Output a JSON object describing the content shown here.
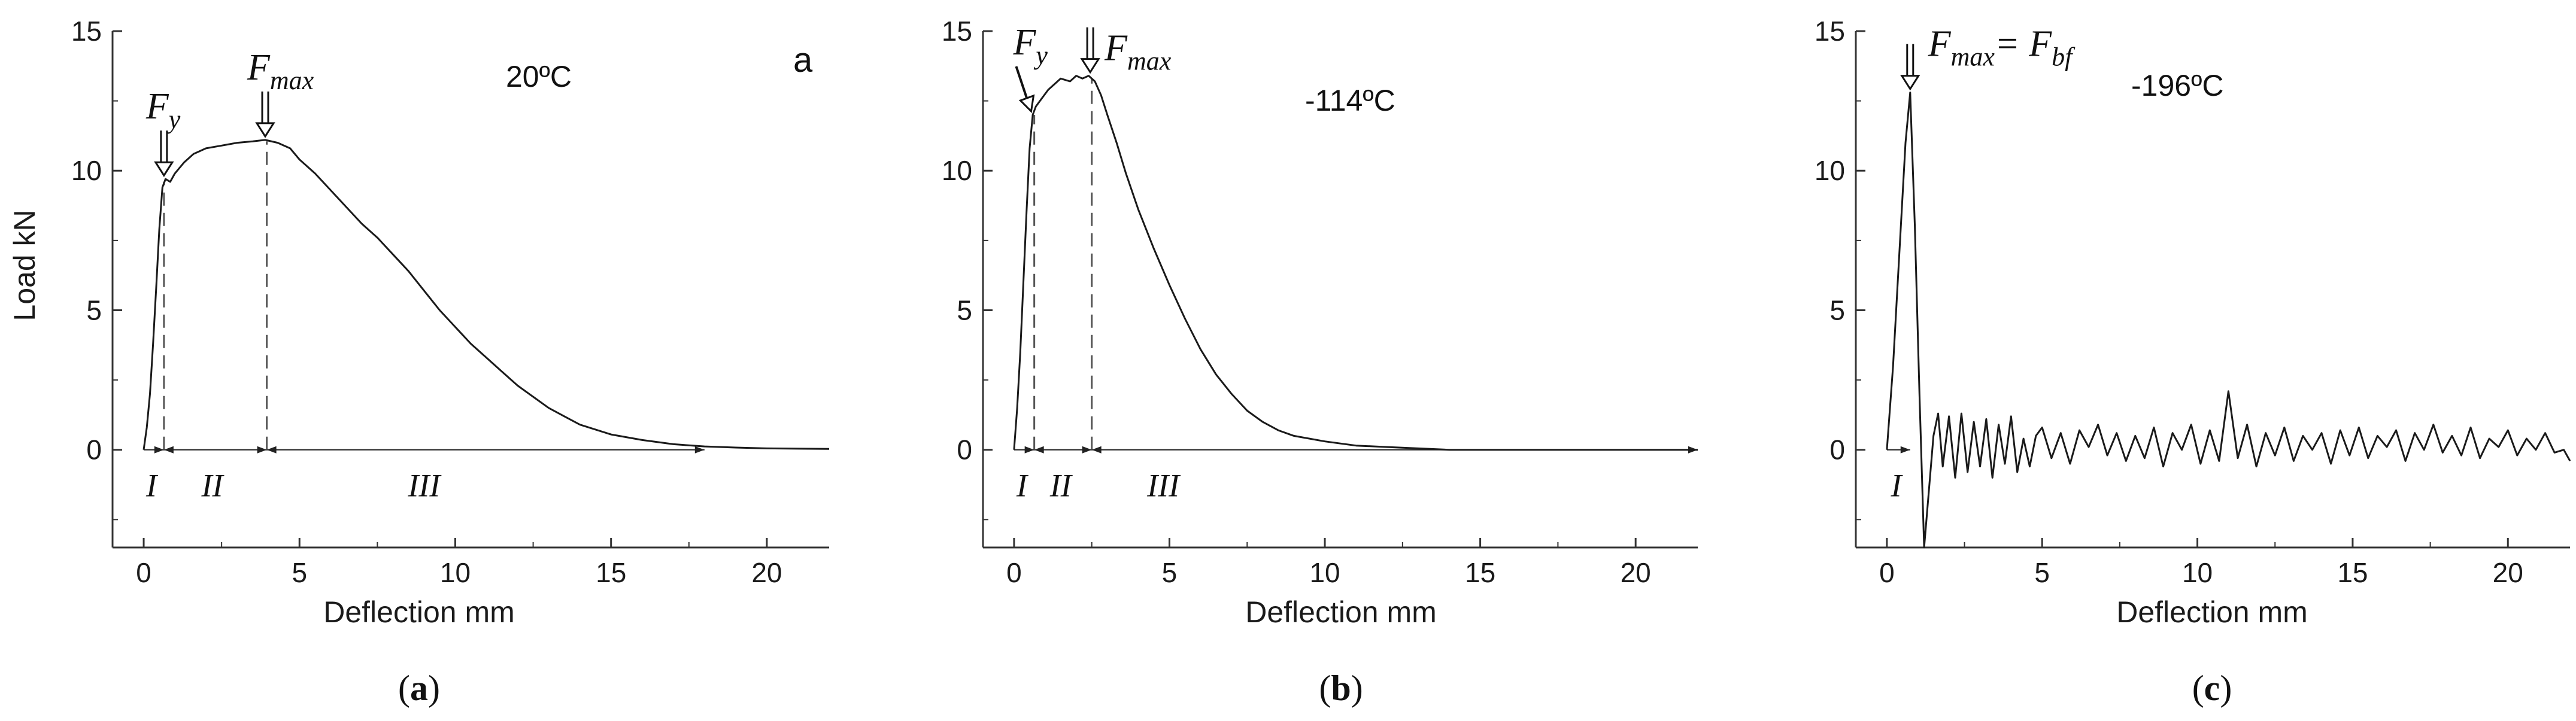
{
  "chart_data": [
    {
      "type": "line",
      "panel": "a",
      "caption_open": "(",
      "caption_letter": "a",
      "caption_close": ")",
      "corner_label": "a",
      "temperature": "20ºC",
      "xlabel": "Deflection  mm",
      "ylabel": "Load  kN",
      "xlim": [
        -1,
        22
      ],
      "ylim": [
        -3.5,
        15
      ],
      "xticks": [
        0,
        5,
        10,
        15,
        20
      ],
      "yticks": [
        0,
        5,
        10,
        15
      ],
      "baseline_end": 18.0,
      "annotations": [
        {
          "base": "F",
          "sub": "y",
          "x": 0.65,
          "y": 9.7,
          "arrow": "down"
        },
        {
          "base": "F",
          "sub": "max",
          "x": 3.9,
          "y": 11.1,
          "arrow": "down"
        }
      ],
      "dashed_markers": [
        0.65,
        3.95
      ],
      "stages": [
        {
          "label": "I",
          "x": 0.25
        },
        {
          "label": "II",
          "x": 2.2
        },
        {
          "label": "III",
          "x": 9.0
        }
      ],
      "series": [
        {
          "x": [
            0.0,
            0.1,
            0.2,
            0.3,
            0.4,
            0.5,
            0.6,
            0.7,
            0.85,
            1.0,
            1.3,
            1.6,
            2.0,
            2.5,
            3.0,
            3.5,
            3.9,
            4.3,
            4.7,
            5.0,
            5.5,
            6.0,
            6.5,
            7.0,
            7.5,
            8.0,
            8.5,
            9.0,
            9.5,
            10.0,
            10.5,
            11.0,
            11.5,
            12.0,
            12.5,
            13.0,
            13.5,
            14.0,
            15.0,
            16.0,
            17.0,
            18.0,
            19.0,
            20.0,
            21.0,
            22.0
          ],
          "y": [
            0.0,
            0.8,
            2.0,
            3.8,
            5.8,
            7.9,
            9.4,
            9.7,
            9.6,
            9.9,
            10.3,
            10.6,
            10.8,
            10.9,
            11.0,
            11.05,
            11.1,
            11.0,
            10.8,
            10.4,
            9.9,
            9.3,
            8.7,
            8.1,
            7.6,
            7.0,
            6.4,
            5.7,
            5.0,
            4.4,
            3.8,
            3.3,
            2.8,
            2.3,
            1.9,
            1.5,
            1.2,
            0.9,
            0.55,
            0.35,
            0.2,
            0.12,
            0.08,
            0.05,
            0.04,
            0.03
          ]
        }
      ]
    },
    {
      "type": "line",
      "panel": "b",
      "caption_open": "(",
      "caption_letter": "b",
      "caption_close": ")",
      "temperature": "-114ºC",
      "xlabel": "Deflection  mm",
      "ylabel": "",
      "xlim": [
        -1,
        22
      ],
      "ylim": [
        -3.5,
        15
      ],
      "xticks": [
        0,
        5,
        10,
        15,
        20
      ],
      "yticks": [
        0,
        5,
        10,
        15
      ],
      "baseline_end": 22.0,
      "annotations": [
        {
          "base": "F",
          "sub": "y",
          "x": 0.55,
          "y": 12.0,
          "arrow": "down-right"
        },
        {
          "base": "F",
          "sub": "max",
          "x": 2.45,
          "y": 13.4,
          "arrow": "down"
        }
      ],
      "dashed_markers": [
        0.65,
        2.5
      ],
      "stages": [
        {
          "label": "I",
          "x": 0.25
        },
        {
          "label": "II",
          "x": 1.5
        },
        {
          "label": "III",
          "x": 4.8
        }
      ],
      "series": [
        {
          "x": [
            0.0,
            0.1,
            0.2,
            0.3,
            0.4,
            0.5,
            0.6,
            0.7,
            0.9,
            1.1,
            1.3,
            1.5,
            1.8,
            2.0,
            2.2,
            2.4,
            2.6,
            2.8,
            3.0,
            3.3,
            3.6,
            4.0,
            4.5,
            5.0,
            5.5,
            6.0,
            6.5,
            7.0,
            7.5,
            8.0,
            8.5,
            9.0,
            10.0,
            11.0,
            12.0,
            13.0,
            14.0,
            16.0,
            18.0,
            20.0,
            22.0
          ],
          "y": [
            0.0,
            1.5,
            3.5,
            6.0,
            8.5,
            10.8,
            12.0,
            12.3,
            12.6,
            12.9,
            13.1,
            13.3,
            13.2,
            13.4,
            13.3,
            13.4,
            13.2,
            12.7,
            12.0,
            11.0,
            9.9,
            8.6,
            7.2,
            5.9,
            4.7,
            3.6,
            2.7,
            2.0,
            1.4,
            1.0,
            0.7,
            0.5,
            0.3,
            0.15,
            0.1,
            0.05,
            0.0,
            0.0,
            0.0,
            0.0,
            0.0
          ]
        }
      ]
    },
    {
      "type": "line",
      "panel": "c",
      "caption_open": "(",
      "caption_letter": "c",
      "caption_close": ")",
      "temperature": "-196ºC",
      "xlabel": "Deflection  mm",
      "ylabel": "",
      "xlim": [
        -1,
        22
      ],
      "ylim": [
        -3.5,
        15
      ],
      "xticks": [
        0,
        5,
        10,
        15,
        20
      ],
      "yticks": [
        0,
        5,
        10,
        15
      ],
      "baseline_end": 0.75,
      "annotation_text": {
        "f1": "F",
        "s1": "max",
        "eq": "= ",
        "f2": "F",
        "s2": "bf"
      },
      "annotations": [
        {
          "x": 0.75,
          "y": 12.8,
          "arrow": "down"
        }
      ],
      "dashed_markers": [],
      "stages": [
        {
          "label": "I",
          "x": 0.3
        }
      ],
      "series": [
        {
          "x": [
            0.0,
            0.2,
            0.4,
            0.6,
            0.75,
            0.9,
            1.05,
            1.2,
            1.35,
            1.5,
            1.65,
            1.8,
            2.0,
            2.2,
            2.4,
            2.6,
            2.8,
            3.0,
            3.2,
            3.4,
            3.6,
            3.8,
            4.0,
            4.2,
            4.4,
            4.6,
            4.8,
            5.0,
            5.3,
            5.6,
            5.9,
            6.2,
            6.5,
            6.8,
            7.1,
            7.4,
            7.7,
            8.0,
            8.3,
            8.6,
            8.9,
            9.2,
            9.5,
            9.8,
            10.1,
            10.4,
            10.7,
            11.0,
            11.3,
            11.6,
            11.9,
            12.2,
            12.5,
            12.8,
            13.1,
            13.4,
            13.7,
            14.0,
            14.3,
            14.6,
            14.9,
            15.2,
            15.5,
            15.8,
            16.1,
            16.4,
            16.7,
            17.0,
            17.3,
            17.6,
            17.9,
            18.2,
            18.5,
            18.8,
            19.1,
            19.4,
            19.7,
            20.0,
            20.3,
            20.6,
            20.9,
            21.2,
            21.5,
            21.8,
            22.0
          ],
          "y": [
            0.0,
            3.0,
            7.0,
            11.0,
            12.8,
            8.0,
            2.0,
            -3.5,
            -1.5,
            0.5,
            1.3,
            -0.6,
            1.2,
            -1.0,
            1.3,
            -0.8,
            1.0,
            -0.6,
            1.1,
            -1.0,
            0.9,
            -0.5,
            1.2,
            -0.8,
            0.4,
            -0.6,
            0.5,
            0.8,
            -0.3,
            0.6,
            -0.5,
            0.7,
            0.1,
            0.9,
            -0.2,
            0.6,
            -0.4,
            0.5,
            -0.3,
            0.8,
            -0.6,
            0.6,
            0.0,
            0.9,
            -0.5,
            0.7,
            -0.4,
            2.1,
            -0.3,
            0.9,
            -0.6,
            0.6,
            -0.2,
            0.8,
            -0.4,
            0.5,
            0.0,
            0.6,
            -0.5,
            0.7,
            -0.2,
            0.8,
            -0.3,
            0.5,
            0.1,
            0.7,
            -0.4,
            0.6,
            0.0,
            0.9,
            -0.1,
            0.5,
            -0.2,
            0.8,
            -0.3,
            0.4,
            0.1,
            0.7,
            -0.2,
            0.4,
            0.0,
            0.6,
            -0.1,
            0.0,
            -0.4
          ]
        }
      ]
    }
  ]
}
